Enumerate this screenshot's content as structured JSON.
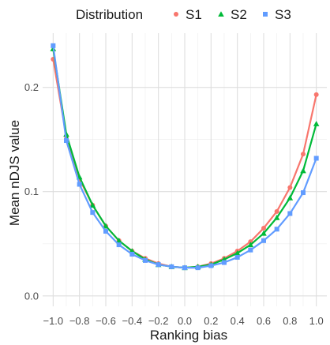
{
  "chart_data": {
    "type": "line",
    "xlabel": "Ranking bias",
    "ylabel": "Mean nDJS value",
    "xlim": [
      -1.08,
      1.08
    ],
    "ylim": [
      -0.01,
      0.252
    ],
    "x_ticks": [
      -1.0,
      -0.8,
      -0.6,
      -0.4,
      -0.2,
      0.0,
      0.2,
      0.4,
      0.6,
      0.8,
      1.0
    ],
    "x_tick_labels": [
      "−1.0",
      "−0.8",
      "−0.6",
      "−0.4",
      "−0.2",
      "0.0",
      "0.2",
      "0.4",
      "0.6",
      "0.8",
      "1.0"
    ],
    "y_ticks": [
      0.0,
      0.1,
      0.2
    ],
    "y_tick_labels": [
      "0.0",
      "0.1",
      "0.2"
    ],
    "grid": true,
    "legend": {
      "title": "Distribution",
      "placement": "top"
    },
    "x": [
      -1.0,
      -0.9,
      -0.8,
      -0.7,
      -0.6,
      -0.5,
      -0.4,
      -0.3,
      -0.2,
      -0.1,
      0.0,
      0.1,
      0.2,
      0.3,
      0.4,
      0.5,
      0.6,
      0.7,
      0.8,
      0.9,
      1.0
    ],
    "series": [
      {
        "name": "S1",
        "color": "#F8766D",
        "marker": "circle",
        "values": [
          0.227,
          0.153,
          0.112,
          0.087,
          0.067,
          0.053,
          0.043,
          0.036,
          0.031,
          0.028,
          0.027,
          0.028,
          0.031,
          0.036,
          0.043,
          0.052,
          0.065,
          0.081,
          0.104,
          0.136,
          0.193
        ]
      },
      {
        "name": "S2",
        "color": "#00BA38",
        "marker": "triangle",
        "values": [
          0.237,
          0.155,
          0.114,
          0.087,
          0.067,
          0.053,
          0.043,
          0.035,
          0.03,
          0.028,
          0.027,
          0.028,
          0.03,
          0.035,
          0.041,
          0.049,
          0.06,
          0.075,
          0.094,
          0.12,
          0.165
        ]
      },
      {
        "name": "S3",
        "color": "#619CFF",
        "marker": "square",
        "values": [
          0.24,
          0.149,
          0.107,
          0.08,
          0.062,
          0.049,
          0.04,
          0.034,
          0.03,
          0.028,
          0.027,
          0.027,
          0.029,
          0.032,
          0.037,
          0.044,
          0.053,
          0.064,
          0.079,
          0.099,
          0.132
        ]
      }
    ]
  }
}
